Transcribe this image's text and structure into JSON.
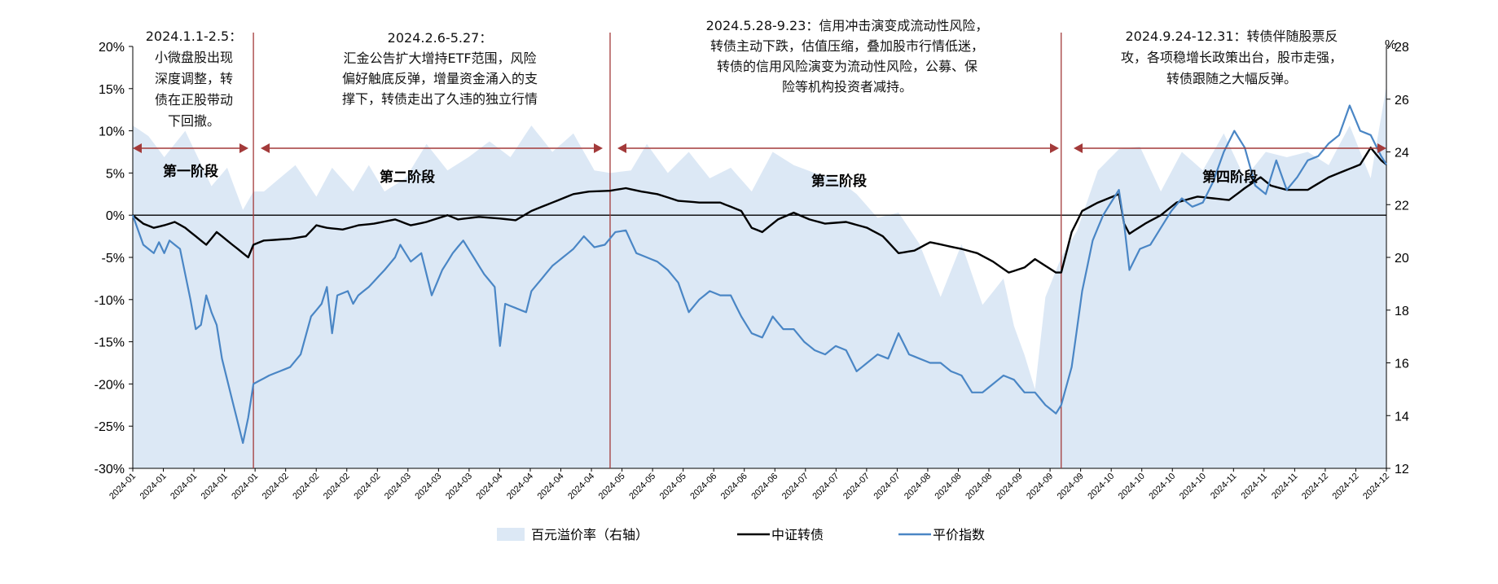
{
  "chart_data": {
    "type": "line",
    "title": "",
    "left_axis": {
      "unit": "%",
      "ylim": [
        -30,
        20
      ],
      "ticks": [
        "20%",
        "15%",
        "10%",
        "5%",
        "0%",
        "-5%",
        "-10%",
        "-15%",
        "-20%",
        "-25%",
        "-30%"
      ]
    },
    "right_axis": {
      "unit_label": "%",
      "ylim": [
        12,
        28
      ],
      "ticks": [
        "28",
        "26",
        "24",
        "22",
        "20",
        "18",
        "16",
        "14",
        "12"
      ]
    },
    "x_tick_labels": [
      "2024-01",
      "2024-01",
      "2024-01",
      "2024-01",
      "2024-01",
      "2024-02",
      "2024-02",
      "2024-02",
      "2024-02",
      "2024-03",
      "2024-03",
      "2024-03",
      "2024-04",
      "2024-04",
      "2024-04",
      "2024-04",
      "2024-05",
      "2024-05",
      "2024-05",
      "2024-06",
      "2024-06",
      "2024-06",
      "2024-07",
      "2024-07",
      "2024-07",
      "2024-07",
      "2024-08",
      "2024-08",
      "2024-08",
      "2024-09",
      "2024-09",
      "2024-09",
      "2024-10",
      "2024-10",
      "2024-10",
      "2024-10",
      "2024-11",
      "2024-11",
      "2024-11",
      "2024-12",
      "2024-12",
      "2024-12"
    ],
    "n_points": 240,
    "stage_boundaries": [
      23,
      91,
      177
    ],
    "stages": [
      {
        "label": "第一阶段",
        "annotation": [
          "2024.1.1-2.5：",
          "小微盘股出现",
          "深度调整，转",
          "债在正股带动",
          "下回撤。"
        ]
      },
      {
        "label": "第二阶段",
        "annotation": [
          "2024.2.6-5.27：",
          "汇金公告扩大增持ETF范围，风险",
          "偏好触底反弹，增量资金涌入的支",
          "撑下，转债走出了久违的独立行情"
        ]
      },
      {
        "label": "第三阶段",
        "annotation": [
          "2024.5.28-9.23：信用冲击演变成流动性风险，",
          "转债主动下跌，估值压缩，叠加股市行情低迷，",
          "转债的信用风险演变为流动性风险，公募、保",
          "险等机构投资者减持。"
        ]
      },
      {
        "label": "第四阶段",
        "annotation": [
          "2024.9.24-12.31：转债伴随股票反",
          "攻，各项稳增长政策出台，股市走强，",
          "转债跟随之大幅反弹。"
        ]
      }
    ],
    "series": [
      {
        "name": "百元溢价率（右轴）",
        "axis": "right",
        "kind": "area",
        "color": "#dce8f5",
        "anchors": [
          [
            0,
            25
          ],
          [
            3,
            24.6
          ],
          [
            6,
            23.8
          ],
          [
            10,
            24.8
          ],
          [
            15,
            22.7
          ],
          [
            18,
            23.4
          ],
          [
            21,
            21.8
          ],
          [
            23,
            22.5
          ],
          [
            25,
            22.5
          ],
          [
            28,
            23.0
          ],
          [
            31,
            23.5
          ],
          [
            35,
            22.3
          ],
          [
            38,
            23.4
          ],
          [
            42,
            22.5
          ],
          [
            45,
            23.5
          ],
          [
            48,
            22.5
          ],
          [
            52,
            23.0
          ],
          [
            56,
            24.3
          ],
          [
            60,
            23.3
          ],
          [
            64,
            23.8
          ],
          [
            68,
            24.4
          ],
          [
            72,
            23.8
          ],
          [
            76,
            25.0
          ],
          [
            80,
            24.0
          ],
          [
            84,
            24.7
          ],
          [
            88,
            23.3
          ],
          [
            91,
            23.2
          ],
          [
            95,
            23.3
          ],
          [
            98,
            24.3
          ],
          [
            102,
            23.2
          ],
          [
            106,
            24.0
          ],
          [
            110,
            23.0
          ],
          [
            114,
            23.4
          ],
          [
            118,
            22.5
          ],
          [
            122,
            24.0
          ],
          [
            126,
            23.5
          ],
          [
            130,
            23.2
          ],
          [
            134,
            23.0
          ],
          [
            138,
            22.4
          ],
          [
            142,
            21.5
          ],
          [
            146,
            21.7
          ],
          [
            150,
            20.5
          ],
          [
            154,
            18.5
          ],
          [
            158,
            20.5
          ],
          [
            162,
            18.2
          ],
          [
            166,
            19.2
          ],
          [
            168,
            17.4
          ],
          [
            170,
            16.3
          ],
          [
            172,
            15.0
          ],
          [
            174,
            18.5
          ],
          [
            176,
            19.5
          ],
          [
            177,
            20.0
          ],
          [
            180,
            21.0
          ],
          [
            184,
            23.3
          ],
          [
            188,
            24.1
          ],
          [
            192,
            24.2
          ],
          [
            196,
            22.5
          ],
          [
            200,
            24.0
          ],
          [
            204,
            23.3
          ],
          [
            208,
            24.7
          ],
          [
            212,
            23.0
          ],
          [
            216,
            24.0
          ],
          [
            220,
            23.8
          ],
          [
            224,
            24.0
          ],
          [
            228,
            23.5
          ],
          [
            232,
            25.0
          ],
          [
            236,
            23.0
          ],
          [
            239,
            26.5
          ]
        ]
      },
      {
        "name": "中证转债",
        "axis": "left",
        "kind": "line",
        "color": "#000000",
        "anchors": [
          [
            0,
            0
          ],
          [
            2,
            -1.0
          ],
          [
            4,
            -1.5
          ],
          [
            6,
            -1.2
          ],
          [
            8,
            -0.8
          ],
          [
            10,
            -1.5
          ],
          [
            12,
            -2.5
          ],
          [
            14,
            -3.5
          ],
          [
            16,
            -2.0
          ],
          [
            18,
            -3.0
          ],
          [
            20,
            -4.0
          ],
          [
            22,
            -5.0
          ],
          [
            23,
            -3.5
          ],
          [
            25,
            -3.0
          ],
          [
            30,
            -2.8
          ],
          [
            33,
            -2.5
          ],
          [
            35,
            -1.2
          ],
          [
            37,
            -1.5
          ],
          [
            40,
            -1.7
          ],
          [
            43,
            -1.2
          ],
          [
            46,
            -1.0
          ],
          [
            50,
            -0.5
          ],
          [
            53,
            -1.2
          ],
          [
            56,
            -0.8
          ],
          [
            60,
            0.0
          ],
          [
            62,
            -0.5
          ],
          [
            66,
            -0.2
          ],
          [
            70,
            -0.4
          ],
          [
            73,
            -0.6
          ],
          [
            76,
            0.5
          ],
          [
            80,
            1.5
          ],
          [
            84,
            2.5
          ],
          [
            87,
            2.8
          ],
          [
            91,
            2.9
          ],
          [
            94,
            3.2
          ],
          [
            97,
            2.8
          ],
          [
            100,
            2.5
          ],
          [
            104,
            1.7
          ],
          [
            108,
            1.5
          ],
          [
            112,
            1.5
          ],
          [
            116,
            0.5
          ],
          [
            118,
            -1.5
          ],
          [
            120,
            -2.0
          ],
          [
            123,
            -0.5
          ],
          [
            126,
            0.3
          ],
          [
            129,
            -0.5
          ],
          [
            132,
            -1.0
          ],
          [
            136,
            -0.8
          ],
          [
            140,
            -1.5
          ],
          [
            143,
            -2.5
          ],
          [
            146,
            -4.5
          ],
          [
            149,
            -4.2
          ],
          [
            152,
            -3.2
          ],
          [
            155,
            -3.6
          ],
          [
            158,
            -4.0
          ],
          [
            161,
            -4.5
          ],
          [
            164,
            -5.5
          ],
          [
            167,
            -6.8
          ],
          [
            170,
            -6.2
          ],
          [
            172,
            -5.2
          ],
          [
            174,
            -6.0
          ],
          [
            176,
            -6.8
          ],
          [
            177,
            -6.8
          ],
          [
            179,
            -2.0
          ],
          [
            181,
            0.5
          ],
          [
            184,
            1.5
          ],
          [
            188,
            2.5
          ],
          [
            189,
            -1.0
          ],
          [
            190,
            -2.2
          ],
          [
            193,
            -1.0
          ],
          [
            196,
            0.0
          ],
          [
            199,
            1.5
          ],
          [
            203,
            2.2
          ],
          [
            206,
            2.0
          ],
          [
            209,
            1.8
          ],
          [
            212,
            3.2
          ],
          [
            215,
            4.5
          ],
          [
            217,
            3.5
          ],
          [
            220,
            3.0
          ],
          [
            224,
            3.0
          ],
          [
            228,
            4.5
          ],
          [
            232,
            5.5
          ],
          [
            234,
            6.0
          ],
          [
            236,
            8.0
          ],
          [
            238,
            6.5
          ],
          [
            239,
            6.0
          ]
        ]
      },
      {
        "name": "平价指数",
        "axis": "left",
        "kind": "line",
        "color": "#4a86c5",
        "anchors": [
          [
            0,
            0
          ],
          [
            2,
            -3.5
          ],
          [
            4,
            -4.5
          ],
          [
            5,
            -3.2
          ],
          [
            6,
            -4.5
          ],
          [
            7,
            -3.0
          ],
          [
            9,
            -4.0
          ],
          [
            11,
            -10.0
          ],
          [
            12,
            -13.5
          ],
          [
            13,
            -13.0
          ],
          [
            14,
            -9.5
          ],
          [
            15,
            -11.5
          ],
          [
            16,
            -13.0
          ],
          [
            17,
            -17.0
          ],
          [
            19,
            -22.0
          ],
          [
            21,
            -27.0
          ],
          [
            22,
            -24.0
          ],
          [
            23,
            -20.0
          ],
          [
            26,
            -19.0
          ],
          [
            30,
            -18.0
          ],
          [
            32,
            -16.5
          ],
          [
            34,
            -12.0
          ],
          [
            36,
            -10.5
          ],
          [
            37,
            -8.5
          ],
          [
            38,
            -14.0
          ],
          [
            39,
            -9.5
          ],
          [
            41,
            -9.0
          ],
          [
            42,
            -10.5
          ],
          [
            43,
            -9.5
          ],
          [
            45,
            -8.5
          ],
          [
            48,
            -6.5
          ],
          [
            50,
            -5.0
          ],
          [
            51,
            -3.5
          ],
          [
            53,
            -5.5
          ],
          [
            55,
            -4.5
          ],
          [
            57,
            -9.5
          ],
          [
            59,
            -6.5
          ],
          [
            61,
            -4.5
          ],
          [
            63,
            -3.0
          ],
          [
            65,
            -5.0
          ],
          [
            67,
            -7.0
          ],
          [
            69,
            -8.5
          ],
          [
            70,
            -15.5
          ],
          [
            71,
            -10.5
          ],
          [
            73,
            -11.0
          ],
          [
            75,
            -11.5
          ],
          [
            76,
            -9.0
          ],
          [
            78,
            -7.5
          ],
          [
            80,
            -6.0
          ],
          [
            82,
            -5.0
          ],
          [
            84,
            -4.0
          ],
          [
            86,
            -2.5
          ],
          [
            88,
            -3.8
          ],
          [
            90,
            -3.5
          ],
          [
            92,
            -2.0
          ],
          [
            94,
            -1.8
          ],
          [
            96,
            -4.5
          ],
          [
            98,
            -5.0
          ],
          [
            100,
            -5.5
          ],
          [
            102,
            -6.5
          ],
          [
            104,
            -8.0
          ],
          [
            106,
            -11.5
          ],
          [
            108,
            -10.0
          ],
          [
            110,
            -9.0
          ],
          [
            112,
            -9.5
          ],
          [
            114,
            -9.5
          ],
          [
            116,
            -12.0
          ],
          [
            118,
            -14.0
          ],
          [
            120,
            -14.5
          ],
          [
            122,
            -12.0
          ],
          [
            124,
            -13.5
          ],
          [
            126,
            -13.5
          ],
          [
            128,
            -15.0
          ],
          [
            130,
            -16.0
          ],
          [
            132,
            -16.5
          ],
          [
            134,
            -15.5
          ],
          [
            136,
            -16.0
          ],
          [
            138,
            -18.5
          ],
          [
            140,
            -17.5
          ],
          [
            142,
            -16.5
          ],
          [
            144,
            -17.0
          ],
          [
            146,
            -14.0
          ],
          [
            148,
            -16.5
          ],
          [
            150,
            -17.0
          ],
          [
            152,
            -17.5
          ],
          [
            154,
            -17.5
          ],
          [
            156,
            -18.5
          ],
          [
            158,
            -19.0
          ],
          [
            160,
            -21.0
          ],
          [
            162,
            -21.0
          ],
          [
            164,
            -20.0
          ],
          [
            166,
            -19.0
          ],
          [
            168,
            -19.5
          ],
          [
            170,
            -21.0
          ],
          [
            172,
            -21.0
          ],
          [
            174,
            -22.5
          ],
          [
            176,
            -23.5
          ],
          [
            177,
            -22.5
          ],
          [
            179,
            -18.0
          ],
          [
            181,
            -9.0
          ],
          [
            183,
            -3.0
          ],
          [
            185,
            0.0
          ],
          [
            188,
            3.0
          ],
          [
            189,
            -1.0
          ],
          [
            190,
            -6.5
          ],
          [
            192,
            -4.0
          ],
          [
            194,
            -3.5
          ],
          [
            196,
            -1.5
          ],
          [
            198,
            0.5
          ],
          [
            200,
            2.0
          ],
          [
            202,
            1.0
          ],
          [
            204,
            1.5
          ],
          [
            206,
            4.0
          ],
          [
            208,
            7.5
          ],
          [
            210,
            10.0
          ],
          [
            212,
            8.0
          ],
          [
            214,
            3.5
          ],
          [
            216,
            2.5
          ],
          [
            218,
            6.5
          ],
          [
            220,
            3.0
          ],
          [
            222,
            4.5
          ],
          [
            224,
            6.5
          ],
          [
            226,
            7.0
          ],
          [
            228,
            8.5
          ],
          [
            230,
            9.5
          ],
          [
            232,
            13.0
          ],
          [
            234,
            10.0
          ],
          [
            236,
            9.5
          ],
          [
            238,
            7.0
          ],
          [
            239,
            6.0
          ]
        ]
      }
    ],
    "legend": {
      "placement": "bottom-center",
      "entries": [
        "百元溢价率（右轴）",
        "中证转债",
        "平价指数"
      ]
    }
  }
}
